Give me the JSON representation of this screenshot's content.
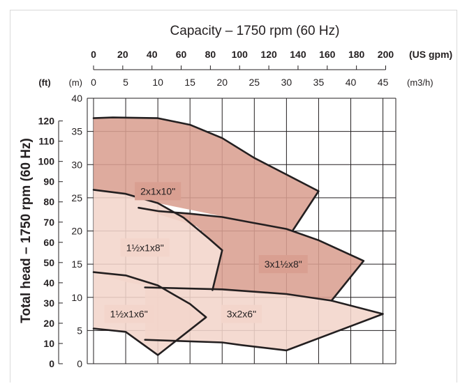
{
  "chart_data": {
    "type": "area",
    "title": "Capacity – 1750 rpm (60 Hz)",
    "ylabel": "Total head – 1750 rpm (60 Hz)",
    "x_primary": {
      "unit_label": "(m3/h)",
      "ticks": [
        0,
        5,
        10,
        15,
        20,
        25,
        30,
        35,
        40,
        45
      ],
      "range": [
        0,
        47
      ]
    },
    "x_secondary": {
      "unit_label": "(US gpm)",
      "ticks": [
        0,
        20,
        40,
        60,
        80,
        100,
        120,
        140,
        160,
        180,
        200
      ]
    },
    "y_primary": {
      "unit_label": "(m)",
      "ticks": [
        0,
        5,
        10,
        15,
        20,
        25,
        30,
        35,
        40
      ],
      "range": [
        0,
        40
      ]
    },
    "y_secondary": {
      "unit_label": "(ft)",
      "ticks": [
        0,
        10,
        20,
        30,
        40,
        50,
        60,
        70,
        80,
        90,
        100,
        110,
        120
      ]
    },
    "grid": true,
    "regions": [
      {
        "name": "2x1x10\"",
        "color": "#d99f91",
        "label_at": [
          10,
          26
        ],
        "outline": [
          [
            0,
            37
          ],
          [
            3,
            37.1
          ],
          [
            10,
            37
          ],
          [
            15,
            36
          ],
          [
            20,
            34
          ],
          [
            25,
            31
          ],
          [
            30,
            28.5
          ],
          [
            35,
            26
          ],
          [
            31,
            20.1
          ],
          [
            25,
            21.3
          ],
          [
            20,
            22.2
          ],
          [
            10,
            24.2
          ],
          [
            5,
            25.6
          ],
          [
            0,
            26.2
          ]
        ]
      },
      {
        "name": "3x1½x8\"",
        "color": "#d99f91",
        "label_at": [
          29.5,
          15
        ],
        "outline": [
          [
            7,
            23.5
          ],
          [
            10,
            23
          ],
          [
            15,
            22.6
          ],
          [
            20,
            22.1
          ],
          [
            25,
            21.2
          ],
          [
            30,
            20.3
          ],
          [
            35,
            18.6
          ],
          [
            42,
            15.5
          ],
          [
            37,
            9.5
          ],
          [
            27,
            10.5
          ],
          [
            18.5,
            11.1
          ],
          [
            20,
            17.1
          ],
          [
            16,
            20.7
          ]
        ]
      },
      {
        "name": "1½x1x8\"",
        "color": "#f3d5cb",
        "label_at": [
          8,
          17.5
        ],
        "outline": [
          [
            0,
            26.2
          ],
          [
            5,
            25.6
          ],
          [
            10,
            24.2
          ],
          [
            14,
            22
          ],
          [
            18,
            18.8
          ],
          [
            20,
            17.1
          ],
          [
            18.5,
            11.1
          ],
          [
            10,
            11.5
          ],
          [
            5,
            12.3
          ],
          [
            0,
            13.8
          ]
        ]
      },
      {
        "name": "3x2x6\"",
        "color": "#f3d5cb",
        "label_at": [
          23,
          7.5
        ],
        "outline": [
          [
            8,
            11.5
          ],
          [
            20,
            11.2
          ],
          [
            30,
            10.5
          ],
          [
            37,
            9.5
          ],
          [
            45,
            7.5
          ],
          [
            30,
            2
          ],
          [
            23,
            2.8
          ],
          [
            20,
            3.2
          ],
          [
            8,
            3.6
          ]
        ]
      },
      {
        "name": "1½x1x6\"",
        "color": "#f3d5cb",
        "label_at": [
          5.5,
          7.5
        ],
        "outline": [
          [
            0,
            13.8
          ],
          [
            5,
            13.3
          ],
          [
            10,
            11.8
          ],
          [
            15,
            9
          ],
          [
            17.5,
            7
          ],
          [
            10,
            1.3
          ],
          [
            5,
            4.8
          ],
          [
            0,
            5.3
          ]
        ]
      }
    ],
    "boundaries": [
      [
        [
          0,
          37
        ],
        [
          3,
          37.1
        ],
        [
          10,
          37
        ],
        [
          15,
          36
        ],
        [
          20,
          34
        ],
        [
          25,
          31
        ],
        [
          30,
          28.5
        ],
        [
          35,
          26
        ],
        [
          31,
          20.1
        ]
      ],
      [
        [
          0,
          26.2
        ],
        [
          5,
          25.6
        ],
        [
          10,
          24.2
        ],
        [
          14,
          22
        ],
        [
          18,
          18.8
        ],
        [
          20,
          17.1
        ],
        [
          18.5,
          11.1
        ]
      ],
      [
        [
          7,
          23.5
        ],
        [
          10,
          23
        ],
        [
          15,
          22.6
        ],
        [
          20,
          22.1
        ],
        [
          25,
          21.2
        ],
        [
          30,
          20.3
        ],
        [
          35,
          18.6
        ],
        [
          42,
          15.5
        ],
        [
          37,
          9.5
        ]
      ],
      [
        [
          0,
          13.8
        ],
        [
          5,
          13.3
        ],
        [
          10,
          11.8
        ],
        [
          15,
          9
        ],
        [
          17.5,
          7
        ],
        [
          10,
          1.3
        ],
        [
          5,
          4.8
        ],
        [
          0,
          5.3
        ]
      ],
      [
        [
          8,
          11.5
        ],
        [
          20,
          11.2
        ],
        [
          30,
          10.5
        ],
        [
          37,
          9.5
        ],
        [
          45,
          7.5
        ],
        [
          30,
          2
        ],
        [
          23,
          2.8
        ],
        [
          20,
          3.2
        ],
        [
          8,
          3.6
        ]
      ]
    ]
  }
}
